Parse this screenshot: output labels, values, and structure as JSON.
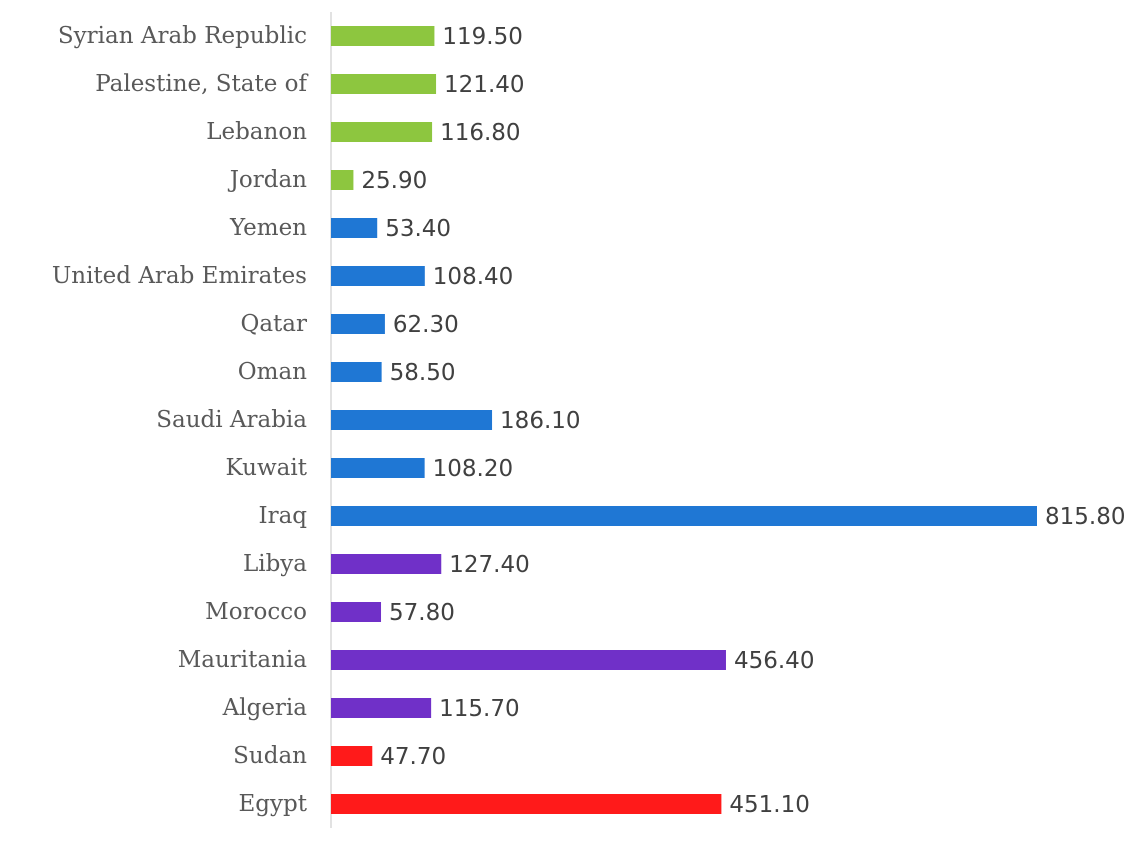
{
  "chart_data": {
    "type": "bar",
    "orientation": "horizontal",
    "categories": [
      "Syrian Arab Republic",
      "Palestine, State of",
      "Lebanon",
      "Jordan",
      "Yemen",
      "United Arab Emirates",
      "Qatar",
      "Oman",
      "Saudi Arabia",
      "Kuwait",
      "Iraq",
      "Libya",
      "Morocco",
      "Mauritania",
      "Algeria",
      "Sudan",
      "Egypt"
    ],
    "values": [
      119.5,
      121.4,
      116.8,
      25.9,
      53.4,
      108.4,
      62.3,
      58.5,
      186.1,
      108.2,
      815.8,
      127.4,
      57.8,
      456.4,
      115.7,
      47.7,
      451.1
    ],
    "value_labels": [
      "119.50",
      "121.40",
      "116.80",
      "25.90",
      "53.40",
      "108.40",
      "62.30",
      "58.50",
      "186.10",
      "108.20",
      "815.80",
      "127.40",
      "57.80",
      "456.40",
      "115.70",
      "47.70",
      "451.10"
    ],
    "bar_colors": [
      "#8dc63f",
      "#8dc63f",
      "#8dc63f",
      "#8dc63f",
      "#1f77d4",
      "#1f77d4",
      "#1f77d4",
      "#1f77d4",
      "#1f77d4",
      "#1f77d4",
      "#1f77d4",
      "#7030c8",
      "#7030c8",
      "#7030c8",
      "#7030c8",
      "#ff1a1a",
      "#ff1a1a"
    ],
    "xlim": [
      0,
      815.8
    ],
    "grid": false,
    "legend": "none",
    "title": "",
    "xlabel": "",
    "ylabel": ""
  },
  "colors": {
    "axis_line": "#d9d9d9",
    "category_text": "#595959",
    "value_text": "#404040"
  }
}
